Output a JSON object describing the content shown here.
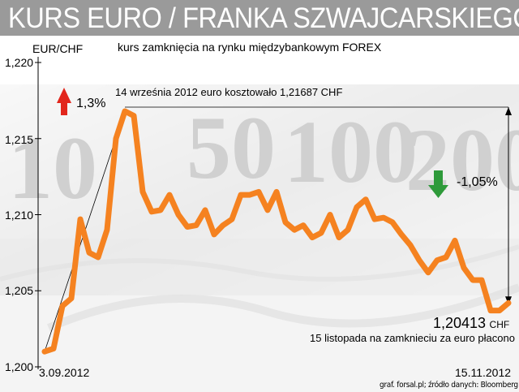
{
  "title": "KURS EURO / FRANKA SZWAJCARSKIEGO",
  "subtitle": "kurs zamknięcia na rynku międzybankowym FOREX",
  "source": "graf. forsal.pl; źródło danych: Bloomberg",
  "colors": {
    "title_bg": "#9a9a9a",
    "line": "#f58220",
    "arrow_up": "#e2261c",
    "arrow_down": "#2e9a3a"
  },
  "chart_data": {
    "type": "line",
    "ylabel": "EUR/CHF",
    "ylim": [
      1.2,
      1.22
    ],
    "yticks": [
      "1,220",
      "1,215",
      "1,210",
      "1,205",
      "1,200"
    ],
    "x_start_label": "3.09.2012",
    "x_end_label": "15.11.2012",
    "values": [
      1.201,
      1.2012,
      1.204,
      1.2045,
      1.2097,
      1.2075,
      1.2072,
      1.209,
      1.215,
      1.2168,
      1.2165,
      1.2115,
      1.2102,
      1.2103,
      1.2113,
      1.21,
      1.2092,
      1.2093,
      1.2103,
      1.2087,
      1.2093,
      1.2097,
      1.2113,
      1.2113,
      1.2115,
      1.2103,
      1.2115,
      1.2095,
      1.209,
      1.2093,
      1.2085,
      1.2088,
      1.21,
      1.2085,
      1.209,
      1.2105,
      1.211,
      1.2097,
      1.2098,
      1.2095,
      1.2087,
      1.208,
      1.207,
      1.2062,
      1.207,
      1.2072,
      1.2083,
      1.2065,
      1.2057,
      1.2057,
      1.2037,
      1.2037,
      1.2042
    ],
    "annotations": {
      "peak_note": "14 września 2012 euro kosztowało 1,21687 CHF",
      "rise_pct": "1,3%",
      "fall_pct": "-1,05%",
      "end_value": "1,20413",
      "end_unit": "CHF",
      "end_note": "15 listopada na zamknieciu za euro płacono"
    }
  }
}
